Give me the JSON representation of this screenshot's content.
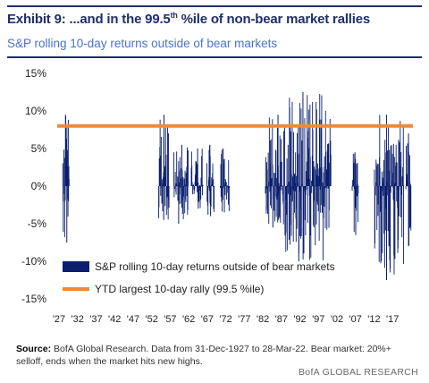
{
  "header": {
    "title_prefix": "Exhibit 9: ...and in the 99.5",
    "title_sup": "th",
    "title_suffix": " %ile of non-bear market rallies",
    "subtitle": "S&P rolling 10-day returns outside of bear markets"
  },
  "footer": {
    "source_label": "Source:",
    "source_text": "BofA Global Research. Data from 31-Dec-1927 to 28-Mar-22. Bear market: 20%+ selloff, ends when the market hits new highs.",
    "brand": "BofA GLOBAL RESEARCH"
  },
  "colors": {
    "bar": "#0b1f6e",
    "threshold": "#ef8a38",
    "title": "#1f2f6b",
    "subtitle": "#4a73c8"
  },
  "chart_data": {
    "type": "bar",
    "ylim": [
      -15,
      15
    ],
    "yticks": [
      "15%",
      "10%",
      "5%",
      "0%",
      "-5%",
      "-10%",
      "-15%"
    ],
    "ytick_values": [
      15,
      10,
      5,
      0,
      -5,
      -10,
      -15
    ],
    "xlim": [
      1927,
      2022.5
    ],
    "xticks": [
      "'27",
      "'32",
      "'37",
      "'42",
      "'47",
      "'52",
      "'57",
      "'62",
      "'67",
      "'72",
      "'77",
      "'82",
      "'87",
      "'92",
      "'97",
      "'02",
      "'07",
      "'12",
      "'17"
    ],
    "xtick_years": [
      1927,
      1932,
      1937,
      1942,
      1947,
      1952,
      1957,
      1962,
      1967,
      1972,
      1977,
      1982,
      1987,
      1992,
      1997,
      2002,
      2007,
      2012,
      2017
    ],
    "segments": [
      {
        "start": 1927.9,
        "end": 1929.7,
        "min": -7.5,
        "max": 9.5
      },
      {
        "start": 1953.8,
        "end": 1956.6,
        "min": -4.5,
        "max": 9.5
      },
      {
        "start": 1957.9,
        "end": 1961.8,
        "min": -5.0,
        "max": 5.5
      },
      {
        "start": 1962.6,
        "end": 1965.8,
        "min": -3.0,
        "max": 5.0
      },
      {
        "start": 1966.8,
        "end": 1968.8,
        "min": -4.0,
        "max": 5.5
      },
      {
        "start": 1970.4,
        "end": 1972.9,
        "min": -3.5,
        "max": 5.0
      },
      {
        "start": 1982.6,
        "end": 1987.6,
        "min": -5.5,
        "max": 9.5
      },
      {
        "start": 1987.8,
        "end": 2000.3,
        "min": -10.0,
        "max": 12.5
      },
      {
        "start": 2006.0,
        "end": 2007.7,
        "min": -6.5,
        "max": 4.5
      },
      {
        "start": 2012.0,
        "end": 2020.0,
        "min": -12.5,
        "max": 9.5
      },
      {
        "start": 2020.5,
        "end": 2021.9,
        "min": -8.0,
        "max": 7.0
      }
    ],
    "series": [
      {
        "name": "S&P rolling 10-day returns outside of bear markets",
        "kind": "bars"
      },
      {
        "name": "YTD largest 10-day rally (99.5 %ile)",
        "kind": "hline",
        "value": 8.0
      }
    ],
    "legend_position": "bottom-left"
  }
}
